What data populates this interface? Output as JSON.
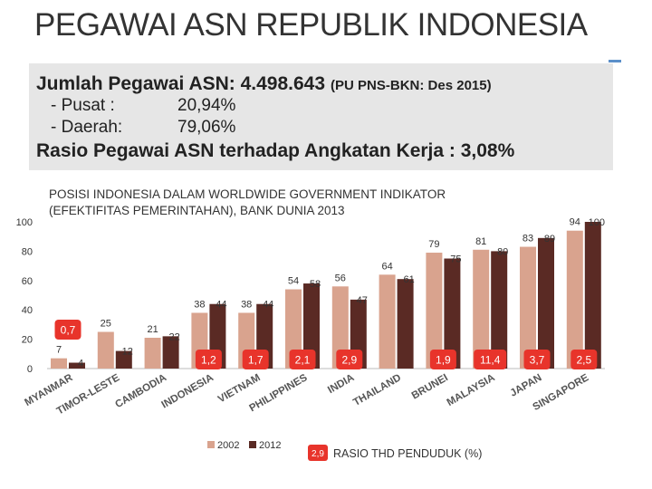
{
  "page": {
    "title": "PEGAWAI ASN REPUBLIK INDONESIA",
    "info": {
      "total_label": "Jumlah Pegawai ASN: 4.498.643",
      "total_note": "(PU PNS-BKN: Des 2015)",
      "rows": [
        {
          "label": "- Pusat  :",
          "value": "20,94%"
        },
        {
          "label": "- Daerah:",
          "value": "79,06%"
        }
      ],
      "ratio_text": "Rasio Pegawai ASN terhadap Angkatan Kerja : 3,08%"
    }
  },
  "chart_data": {
    "type": "bar",
    "title": "POSISI INDONESIA DALAM WORLDWIDE GOVERNMENT INDIKATOR (EFEKTIFITAS PEMERINTAHAN), BANK DUNIA 2013",
    "title_lines": [
      "POSISI INDONESIA DALAM WORLDWIDE GOVERNMENT INDIKATOR",
      "(EFEKTIFITAS PEMERINTAHAN), BANK DUNIA 2013"
    ],
    "categories": [
      "MYANMAR",
      "TIMOR-LESTE",
      "CAMBODIA",
      "INDONESIA",
      "VIETNAM",
      "PHILIPPINES",
      "INDIA",
      "THAILAND",
      "BRUNEI",
      "MALAYSIA",
      "JAPAN",
      "SINGAPORE"
    ],
    "series": [
      {
        "name": "2002",
        "color": "#d9a38e",
        "values": [
          7,
          25,
          21,
          38,
          38,
          54,
          56,
          64,
          79,
          81,
          83,
          94
        ],
        "labels": [
          "7",
          "25",
          "21",
          "38",
          "38",
          "54",
          "56",
          "64",
          "79",
          "81",
          "83",
          "94"
        ]
      },
      {
        "name": "2012",
        "color": "#5a2a24",
        "values": [
          4,
          12,
          22,
          44,
          44,
          58,
          47,
          61,
          75,
          80,
          89,
          100
        ],
        "labels": [
          "4",
          "12",
          "22",
          "44",
          "44",
          "58",
          "47",
          "61",
          "75",
          "80",
          "89",
          "100"
        ]
      }
    ],
    "ratio_labels": [
      "0,7",
      "",
      "",
      "1,2",
      "1,7",
      "2,1",
      "2,9",
      "",
      "1,9",
      "11,4",
      "3,7",
      "2,5"
    ],
    "ratio_legend_label": "RASIO THD PENDUDUK (%)",
    "ratio_legend_sample": "2,9",
    "ratio_color": "#e8342b",
    "ylim": [
      0,
      100
    ],
    "yticks": [
      0,
      20,
      40,
      60,
      80,
      100
    ],
    "legend_position": "bottom"
  }
}
